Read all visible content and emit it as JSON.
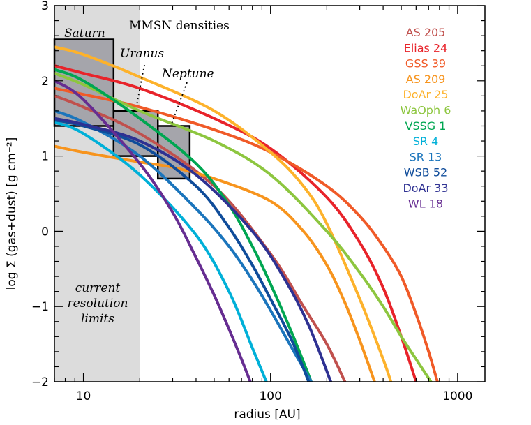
{
  "chart_data": {
    "type": "line",
    "title": "",
    "xlabel": "radius [AU]",
    "ylabel": "log Σ (gas+dust) [g cm⁻²]",
    "x_scale": "log",
    "xlim": [
      7,
      1400
    ],
    "ylim": [
      -2,
      3
    ],
    "x_ticks": [
      10,
      100,
      1000
    ],
    "x_tick_labels": [
      "10",
      "100",
      "1000"
    ],
    "y_ticks": [
      -2,
      -1,
      0,
      1,
      2,
      3
    ],
    "y_tick_labels": [
      "−2",
      "−1",
      "0",
      "1",
      "2",
      "3"
    ],
    "legend_position": "top-right",
    "shaded_region": {
      "x": [
        7,
        20
      ],
      "color": "#dcdcdc",
      "label_lines": [
        "current",
        "resolution",
        "limits"
      ]
    },
    "annotations": {
      "mmsn_title": "MMSN densities",
      "saturn": "Saturn",
      "uranus": "Uranus",
      "neptune": "Neptune"
    },
    "mmsn_boxes": [
      {
        "name": "Saturn",
        "x": [
          7,
          14.5
        ],
        "y": [
          1.4,
          2.55
        ]
      },
      {
        "name": "Uranus",
        "x": [
          14.5,
          25
        ],
        "y": [
          1.0,
          1.6
        ]
      },
      {
        "name": "Neptune",
        "x": [
          25,
          37
        ],
        "y": [
          0.7,
          1.4
        ]
      }
    ],
    "series": [
      {
        "name": "AS 205",
        "color": "#c0504d",
        "x": [
          7,
          10,
          20,
          50,
          100,
          150,
          200,
          250
        ],
        "y": [
          1.8,
          1.65,
          1.3,
          0.6,
          -0.3,
          -1.0,
          -1.5,
          -2.0
        ]
      },
      {
        "name": "Elias 24",
        "color": "#e8232a",
        "x": [
          7,
          10,
          20,
          50,
          100,
          200,
          300,
          400,
          500,
          600
        ],
        "y": [
          2.2,
          2.1,
          1.9,
          1.5,
          1.1,
          0.45,
          -0.15,
          -0.75,
          -1.4,
          -2.0
        ]
      },
      {
        "name": "GSS 39",
        "color": "#f05a28",
        "x": [
          7,
          10,
          20,
          50,
          100,
          200,
          300,
          400,
          500,
          600,
          700,
          780
        ],
        "y": [
          1.9,
          1.82,
          1.65,
          1.35,
          1.05,
          0.6,
          0.2,
          -0.2,
          -0.6,
          -1.1,
          -1.6,
          -2.0
        ]
      },
      {
        "name": "AS 209",
        "color": "#f7941d",
        "x": [
          7,
          10,
          20,
          30,
          50,
          100,
          150,
          200,
          250,
          300,
          360
        ],
        "y": [
          1.13,
          1.05,
          0.92,
          0.85,
          0.7,
          0.4,
          0.0,
          -0.45,
          -0.95,
          -1.45,
          -2.0
        ]
      },
      {
        "name": "DoAr 25",
        "color": "#fdb22b",
        "x": [
          7,
          10,
          20,
          50,
          100,
          150,
          200,
          300,
          400,
          440
        ],
        "y": [
          2.45,
          2.35,
          2.05,
          1.6,
          1.05,
          0.6,
          0.1,
          -0.9,
          -1.7,
          -2.0
        ]
      },
      {
        "name": "WaOph 6",
        "color": "#8dc63f",
        "x": [
          7,
          10,
          20,
          50,
          100,
          200,
          300,
          400,
          500,
          600,
          720
        ],
        "y": [
          2.1,
          1.95,
          1.6,
          1.2,
          0.75,
          0.0,
          -0.55,
          -1.0,
          -1.4,
          -1.7,
          -2.0
        ]
      },
      {
        "name": "VSSG 1",
        "color": "#00a651",
        "x": [
          7,
          10,
          20,
          40,
          60,
          80,
          100,
          130,
          165
        ],
        "y": [
          2.15,
          2.0,
          1.5,
          0.9,
          0.35,
          -0.2,
          -0.7,
          -1.35,
          -2.0
        ]
      },
      {
        "name": "SR 4",
        "color": "#00b0d8",
        "x": [
          7,
          10,
          20,
          40,
          60,
          80,
          95
        ],
        "y": [
          1.45,
          1.3,
          0.75,
          -0.05,
          -0.8,
          -1.55,
          -2.0
        ]
      },
      {
        "name": "SR 13",
        "color": "#1b75bc",
        "x": [
          7,
          10,
          20,
          40,
          60,
          80,
          100,
          130,
          165
        ],
        "y": [
          1.6,
          1.45,
          1.0,
          0.3,
          -0.2,
          -0.65,
          -1.05,
          -1.55,
          -2.0
        ]
      },
      {
        "name": "WSB 52",
        "color": "#0f4c9a",
        "x": [
          7,
          10,
          20,
          40,
          60,
          80,
          100,
          130,
          160
        ],
        "y": [
          1.48,
          1.4,
          1.15,
          0.6,
          0.05,
          -0.45,
          -0.9,
          -1.45,
          -2.0
        ]
      },
      {
        "name": "DoAr 33",
        "color": "#2e3192",
        "x": [
          7,
          10,
          20,
          40,
          80,
          120,
          160,
          210
        ],
        "y": [
          1.5,
          1.42,
          1.2,
          0.75,
          0.0,
          -0.65,
          -1.25,
          -2.0
        ]
      },
      {
        "name": "WL 18",
        "color": "#662d91",
        "x": [
          7,
          10,
          20,
          30,
          40,
          50,
          60,
          70,
          78
        ],
        "y": [
          2.0,
          1.75,
          0.9,
          0.25,
          -0.35,
          -0.85,
          -1.3,
          -1.7,
          -2.0
        ]
      }
    ]
  }
}
